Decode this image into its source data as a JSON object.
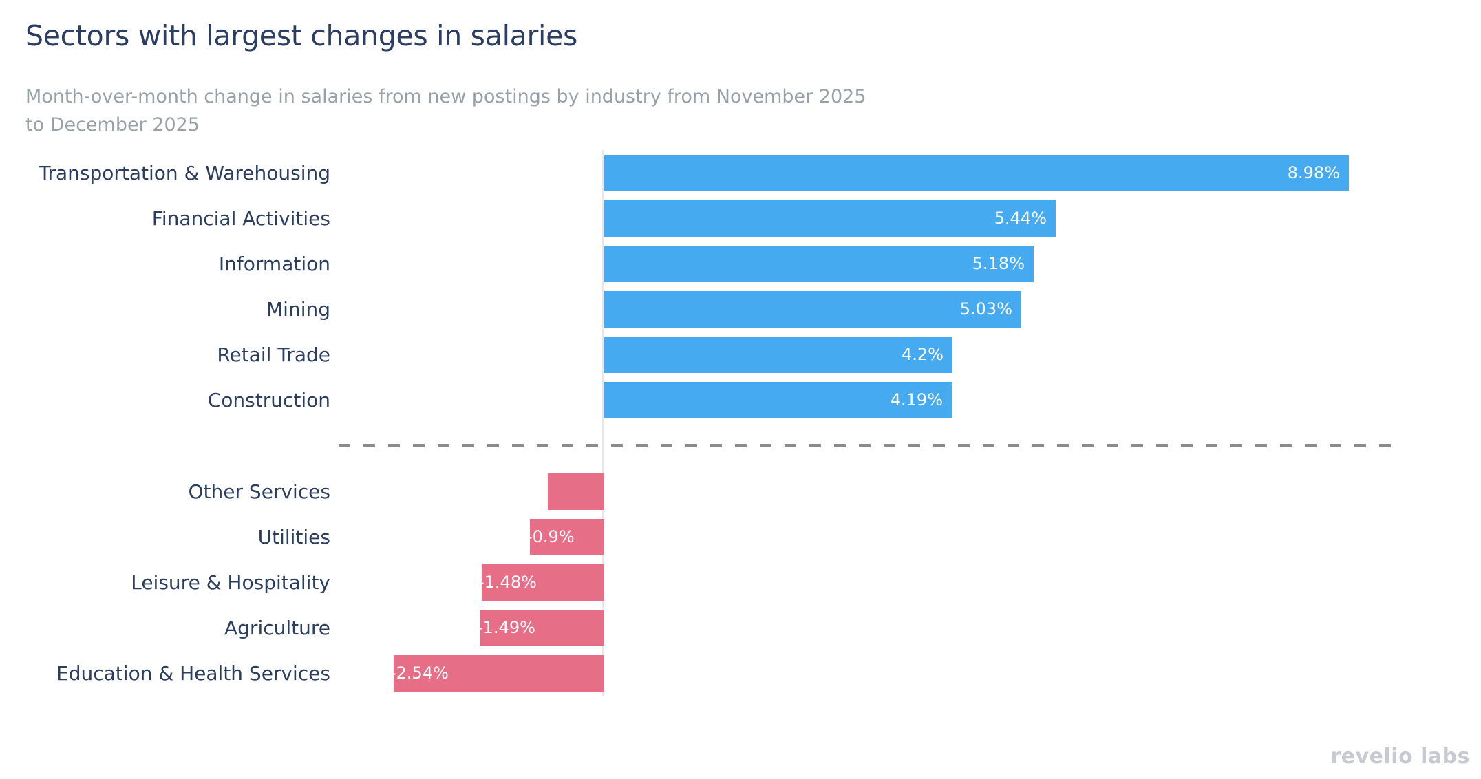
{
  "chart_data": {
    "type": "bar",
    "orientation": "horizontal",
    "title": "Sectors with largest changes in salaries",
    "subtitle_lines": [
      "Month-over-month change in salaries from new postings by industry from November 2025",
      "to December 2025"
    ],
    "unit": "%",
    "categories": [
      "Transportation & Warehousing",
      "Financial Activities",
      "Information",
      "Mining",
      "Retail Trade",
      "Construction",
      "Other Services",
      "Utilities",
      "Leisure & Hospitality",
      "Agriculture",
      "Education & Health Services"
    ],
    "values": [
      8.98,
      5.44,
      5.18,
      5.03,
      4.2,
      4.19,
      -0.68,
      -0.9,
      -1.48,
      -1.49,
      -2.54
    ],
    "bar_labels": [
      "8.98%",
      "5.44%",
      "5.18%",
      "5.03%",
      "4.2%",
      "4.19%",
      "",
      "-0.9%",
      "-1.48%",
      "-1.49%",
      "-2.54%"
    ],
    "divider_after_index": 5,
    "xlim": [
      -3.2,
      9.5
    ],
    "grid": false,
    "legend": false,
    "value_axis_hidden": true
  },
  "watermark": {
    "text": "revelio labs"
  },
  "colors": {
    "positive_bar": "#46aaf1",
    "negative_bar": "#e66e87",
    "title": "#2d3e63",
    "subtitle": "#98a1a9",
    "category_label": "#2c3e5f",
    "value_label": "#ffffff",
    "axis_line": "#e8e8ec",
    "divider": "#8b8b8b",
    "watermark": "#c7cbd1",
    "background": "#ffffff"
  }
}
